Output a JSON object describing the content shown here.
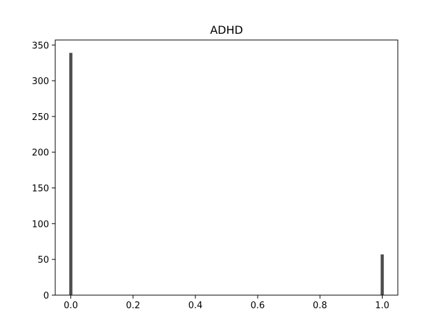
{
  "chart_data": {
    "type": "bar",
    "title": "ADHD",
    "xlabel": "",
    "ylabel": "",
    "x": [
      0.0,
      1.0
    ],
    "values": [
      339,
      57
    ],
    "bar_width": 0.01,
    "xlim": [
      -0.05,
      1.05
    ],
    "ylim": [
      0,
      357
    ],
    "xticks": [
      0.0,
      0.2,
      0.4,
      0.6,
      0.8,
      1.0
    ],
    "xtick_labels": [
      "0.0",
      "0.2",
      "0.4",
      "0.6",
      "0.8",
      "1.0"
    ],
    "yticks": [
      0,
      50,
      100,
      150,
      200,
      250,
      300,
      350
    ],
    "ytick_labels": [
      "0",
      "50",
      "100",
      "150",
      "200",
      "250",
      "300",
      "350"
    ],
    "grid": false,
    "colors": {
      "bar": "#4d4d4d",
      "axis": "#000000"
    }
  }
}
